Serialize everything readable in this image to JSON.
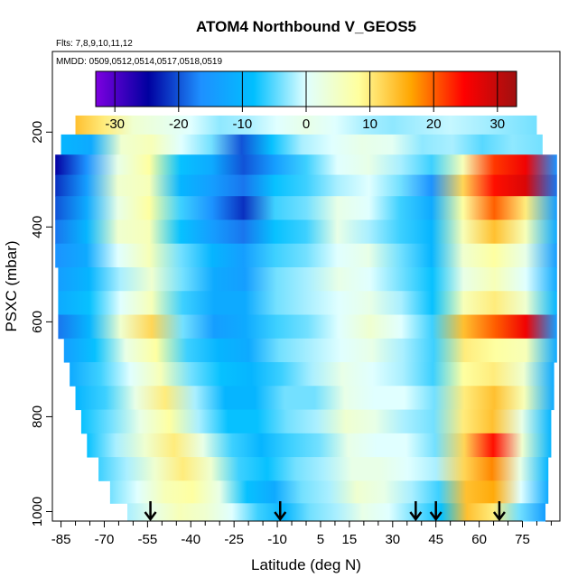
{
  "chart_data": {
    "type": "heatmap",
    "title": "ATOM4 Northbound V_GEOS5",
    "subtitle_flights": "Flts: 7,8,9,10,11,12",
    "subtitle_dates": "MMDD: 0509,0512,0514,0517,0518,0519",
    "xlabel": "Latitude (deg N)",
    "ylabel": "PSXC (mbar)",
    "xlim": [
      -88,
      88
    ],
    "ylim": [
      1020,
      30
    ],
    "x_ticks": [
      -85,
      -70,
      -55,
      -40,
      -25,
      -10,
      5,
      15,
      30,
      45,
      60,
      75
    ],
    "x_minor_ticks": [
      -80,
      -75,
      -65,
      -60,
      -50,
      -45,
      -35,
      -30,
      -20,
      -15,
      -5,
      0,
      10,
      20,
      25,
      35,
      40,
      50,
      55,
      65,
      70,
      80,
      85
    ],
    "y_ticks": [
      200,
      400,
      600,
      800,
      1000
    ],
    "colorbar": {
      "ticks": [
        -30,
        -20,
        -10,
        0,
        10,
        20,
        30
      ],
      "range": [
        -33,
        33
      ],
      "colors": [
        "#7d00e0",
        "#0000a0",
        "#1e90ff",
        "#00bfff",
        "#e0ffff",
        "#ffff9e",
        "#ffa500",
        "#ff0000",
        "#a01010"
      ]
    },
    "arrows_latitude": [
      -54,
      -9,
      38,
      45,
      67
    ],
    "bands": [
      {
        "p": 185,
        "lat": [
          -80,
          80
        ],
        "v": [
          14,
          10,
          4,
          2,
          0,
          -3,
          -2,
          0,
          2,
          0,
          -2,
          -3,
          -2,
          -1,
          -2,
          -3,
          -4
        ]
      },
      {
        "p": 225,
        "lat": [
          -85,
          82
        ],
        "v": [
          -10,
          -12,
          4,
          6,
          0,
          -4,
          -20,
          -8,
          -2,
          0,
          2,
          1,
          -3,
          -2,
          -5,
          -3,
          -4
        ]
      },
      {
        "p": 270,
        "lat": [
          -87,
          87
        ],
        "v": [
          -25,
          -16,
          2,
          8,
          -8,
          -12,
          -20,
          -14,
          -6,
          0,
          2,
          -2,
          -6,
          6,
          22,
          26,
          -16
        ]
      },
      {
        "p": 310,
        "lat": [
          -87,
          87
        ],
        "v": [
          -22,
          -14,
          4,
          6,
          -10,
          -14,
          -18,
          -8,
          -6,
          -2,
          0,
          -4,
          -16,
          12,
          24,
          28,
          -18
        ]
      },
      {
        "p": 360,
        "lat": [
          -87,
          87
        ],
        "v": [
          -20,
          -12,
          2,
          8,
          -6,
          -16,
          -22,
          -6,
          -4,
          2,
          0,
          -6,
          -12,
          8,
          20,
          10,
          -14
        ]
      },
      {
        "p": 410,
        "lat": [
          -87,
          87
        ],
        "v": [
          -18,
          -10,
          4,
          6,
          -8,
          -14,
          -18,
          -8,
          -6,
          2,
          -2,
          -6,
          -10,
          6,
          14,
          6,
          -12
        ]
      },
      {
        "p": 460,
        "lat": [
          -87,
          87
        ],
        "v": [
          -16,
          -12,
          0,
          6,
          -4,
          -10,
          -14,
          -6,
          -4,
          0,
          2,
          -4,
          -10,
          4,
          8,
          2,
          -14
        ]
      },
      {
        "p": 510,
        "lat": [
          -86,
          87
        ],
        "v": [
          -14,
          -10,
          -2,
          4,
          -4,
          -12,
          -14,
          -4,
          -2,
          2,
          0,
          -4,
          -8,
          2,
          6,
          0,
          -12
        ]
      },
      {
        "p": 560,
        "lat": [
          -86,
          87
        ],
        "v": [
          -12,
          -8,
          0,
          6,
          -6,
          -12,
          -12,
          -4,
          -2,
          0,
          2,
          -2,
          -8,
          6,
          10,
          4,
          -10
        ]
      },
      {
        "p": 610,
        "lat": [
          -86,
          87
        ],
        "v": [
          -18,
          -10,
          4,
          12,
          -4,
          -14,
          -12,
          -6,
          -4,
          0,
          4,
          0,
          -6,
          14,
          20,
          26,
          -14
        ]
      },
      {
        "p": 660,
        "lat": [
          -84,
          87
        ],
        "v": [
          -14,
          -8,
          2,
          8,
          -6,
          -10,
          -12,
          -4,
          -2,
          0,
          2,
          -2,
          -6,
          10,
          8,
          6,
          -12
        ]
      },
      {
        "p": 710,
        "lat": [
          -82,
          86
        ],
        "v": [
          -12,
          -6,
          0,
          6,
          -4,
          -8,
          -10,
          -6,
          -2,
          2,
          0,
          -2,
          -6,
          8,
          10,
          4,
          -12
        ]
      },
      {
        "p": 760,
        "lat": [
          -80,
          86
        ],
        "v": [
          -10,
          -6,
          2,
          10,
          -2,
          -10,
          -10,
          -4,
          -4,
          2,
          0,
          0,
          -4,
          10,
          14,
          6,
          -12
        ]
      },
      {
        "p": 810,
        "lat": [
          -78,
          85
        ],
        "v": [
          -8,
          -4,
          2,
          8,
          -2,
          -8,
          -8,
          -4,
          -2,
          4,
          2,
          -2,
          -4,
          10,
          14,
          2,
          -10
        ]
      },
      {
        "p": 860,
        "lat": [
          -76,
          85
        ],
        "v": [
          -8,
          -2,
          4,
          10,
          2,
          -6,
          -10,
          -6,
          -4,
          2,
          0,
          0,
          -4,
          12,
          24,
          4,
          -10
        ]
      },
      {
        "p": 910,
        "lat": [
          -72,
          84
        ],
        "v": [
          -6,
          -2,
          4,
          10,
          4,
          -6,
          -8,
          -4,
          -2,
          2,
          2,
          0,
          -2,
          12,
          18,
          2,
          -10
        ]
      },
      {
        "p": 960,
        "lat": [
          -68,
          84
        ],
        "v": [
          -4,
          0,
          6,
          8,
          2,
          -8,
          -12,
          -4,
          -2,
          4,
          2,
          -2,
          -6,
          14,
          16,
          0,
          -12
        ]
      },
      {
        "p": 1005,
        "lat": [
          -62,
          83
        ],
        "v": [
          -2,
          2,
          6,
          4,
          0,
          -6,
          -10,
          -4,
          -2,
          2,
          0,
          -4,
          -8,
          14,
          10,
          -4,
          -14
        ]
      }
    ]
  }
}
